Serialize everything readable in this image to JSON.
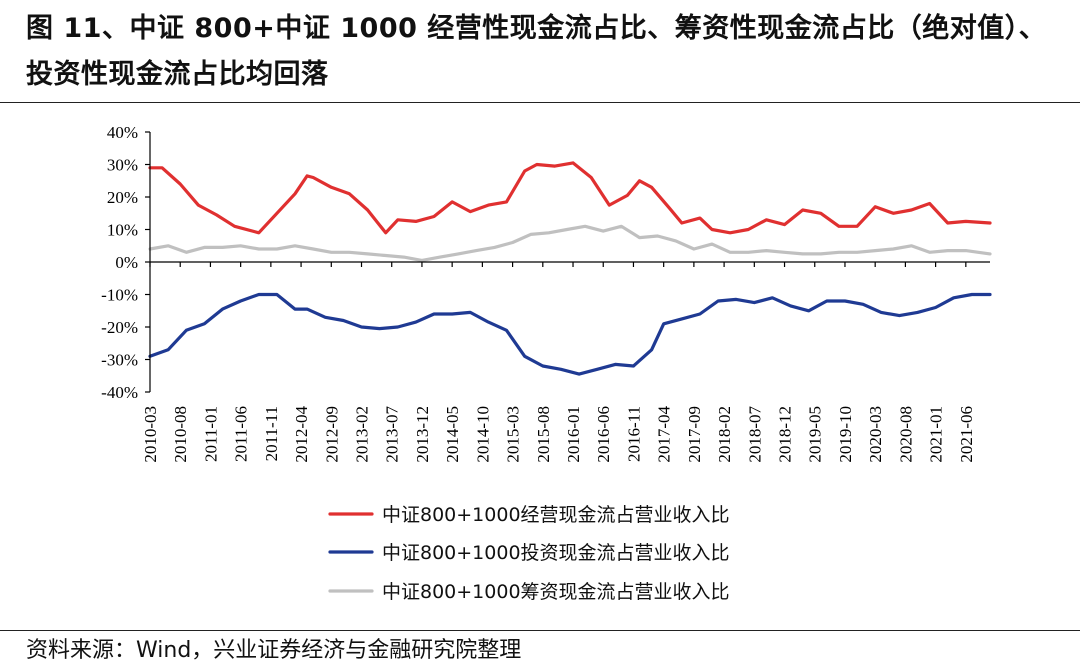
{
  "page": {
    "title": "图 11、中证 800+中证 1000 经营性现金流占比、筹资性现金流占比（绝对值）、投资性现金流占比均回落",
    "source": "资料来源：Wind，兴业证券经济与金融研究院整理"
  },
  "chart_data": {
    "type": "line",
    "title": "",
    "xlabel": "",
    "ylabel": "",
    "ylim": [
      -40,
      40
    ],
    "yticks": [
      "40%",
      "30%",
      "20%",
      "10%",
      "0%",
      "-10%",
      "-20%",
      "-30%",
      "-40%"
    ],
    "ytick_values": [
      40,
      30,
      20,
      10,
      0,
      -10,
      -20,
      -30,
      -40
    ],
    "xlim": [
      "2010-03",
      "2021-10"
    ],
    "xtick_labels": [
      "2010-03",
      "2010-08",
      "2011-01",
      "2011-06",
      "2011-11",
      "2012-04",
      "2012-09",
      "2013-02",
      "2013-07",
      "2013-12",
      "2014-05",
      "2014-10",
      "2015-03",
      "2015-08",
      "2016-01",
      "2016-06",
      "2016-11",
      "2017-04",
      "2017-09",
      "2018-02",
      "2018-07",
      "2018-12",
      "2019-05",
      "2019-10",
      "2020-03",
      "2020-08",
      "2021-01",
      "2021-06"
    ],
    "grid": false,
    "legend_position": "bottom",
    "series": [
      {
        "name": "中证800+1000经营现金流占营业收入比",
        "color": "#e03030",
        "points": [
          [
            "2010-03",
            29
          ],
          [
            "2010-05",
            29
          ],
          [
            "2010-08",
            24
          ],
          [
            "2010-11",
            17.5
          ],
          [
            "2011-02",
            14.5
          ],
          [
            "2011-05",
            11
          ],
          [
            "2011-09",
            9
          ],
          [
            "2011-12",
            15
          ],
          [
            "2012-03",
            21
          ],
          [
            "2012-05",
            26.5
          ],
          [
            "2012-06",
            26
          ],
          [
            "2012-09",
            23
          ],
          [
            "2012-12",
            21
          ],
          [
            "2013-03",
            16
          ],
          [
            "2013-06",
            9
          ],
          [
            "2013-08",
            13
          ],
          [
            "2013-11",
            12.5
          ],
          [
            "2014-02",
            14
          ],
          [
            "2014-05",
            18.5
          ],
          [
            "2014-08",
            15.5
          ],
          [
            "2014-11",
            17.5
          ],
          [
            "2015-02",
            18.5
          ],
          [
            "2015-05",
            28
          ],
          [
            "2015-07",
            30
          ],
          [
            "2015-10",
            29.5
          ],
          [
            "2016-01",
            30.5
          ],
          [
            "2016-04",
            26
          ],
          [
            "2016-07",
            17.5
          ],
          [
            "2016-10",
            20.5
          ],
          [
            "2016-12",
            25
          ],
          [
            "2017-02",
            23
          ],
          [
            "2017-05",
            16.5
          ],
          [
            "2017-07",
            12
          ],
          [
            "2017-10",
            13.5
          ],
          [
            "2017-12",
            10
          ],
          [
            "2018-03",
            9
          ],
          [
            "2018-06",
            10
          ],
          [
            "2018-09",
            13
          ],
          [
            "2018-12",
            11.5
          ],
          [
            "2019-03",
            16
          ],
          [
            "2019-06",
            15
          ],
          [
            "2019-09",
            11
          ],
          [
            "2019-12",
            11
          ],
          [
            "2020-03",
            17
          ],
          [
            "2020-06",
            15
          ],
          [
            "2020-09",
            16
          ],
          [
            "2020-12",
            18
          ],
          [
            "2021-03",
            12
          ],
          [
            "2021-06",
            12.5
          ],
          [
            "2021-10",
            12
          ]
        ]
      },
      {
        "name": "中证800+1000投资现金流占营业收入比",
        "color": "#1f3a93",
        "points": [
          [
            "2010-03",
            -29
          ],
          [
            "2010-06",
            -27
          ],
          [
            "2010-09",
            -21
          ],
          [
            "2010-12",
            -19
          ],
          [
            "2011-03",
            -14.5
          ],
          [
            "2011-06",
            -12
          ],
          [
            "2011-09",
            -10
          ],
          [
            "2011-12",
            -10
          ],
          [
            "2012-03",
            -14.5
          ],
          [
            "2012-05",
            -14.5
          ],
          [
            "2012-08",
            -17
          ],
          [
            "2012-11",
            -18
          ],
          [
            "2013-02",
            -20
          ],
          [
            "2013-05",
            -20.5
          ],
          [
            "2013-08",
            -20
          ],
          [
            "2013-11",
            -18.5
          ],
          [
            "2014-02",
            -16
          ],
          [
            "2014-05",
            -16
          ],
          [
            "2014-08",
            -15.5
          ],
          [
            "2014-11",
            -18.5
          ],
          [
            "2015-02",
            -21
          ],
          [
            "2015-05",
            -29
          ],
          [
            "2015-08",
            -32
          ],
          [
            "2015-11",
            -33
          ],
          [
            "2016-02",
            -34.5
          ],
          [
            "2016-05",
            -33
          ],
          [
            "2016-08",
            -31.5
          ],
          [
            "2016-11",
            -32
          ],
          [
            "2017-02",
            -27
          ],
          [
            "2017-04",
            -19
          ],
          [
            "2017-07",
            -17.5
          ],
          [
            "2017-10",
            -16
          ],
          [
            "2018-01",
            -12
          ],
          [
            "2018-04",
            -11.5
          ],
          [
            "2018-07",
            -12.5
          ],
          [
            "2018-10",
            -11
          ],
          [
            "2019-01",
            -13.5
          ],
          [
            "2019-04",
            -15
          ],
          [
            "2019-07",
            -12
          ],
          [
            "2019-10",
            -12
          ],
          [
            "2020-01",
            -13
          ],
          [
            "2020-04",
            -15.5
          ],
          [
            "2020-07",
            -16.5
          ],
          [
            "2020-10",
            -15.5
          ],
          [
            "2021-01",
            -14
          ],
          [
            "2021-04",
            -11
          ],
          [
            "2021-07",
            -10
          ],
          [
            "2021-10",
            -10
          ]
        ]
      },
      {
        "name": "中证800+1000筹资现金流占营业收入比",
        "color": "#c0c0c0",
        "points": [
          [
            "2010-03",
            4
          ],
          [
            "2010-06",
            5
          ],
          [
            "2010-09",
            3
          ],
          [
            "2010-12",
            4.5
          ],
          [
            "2011-03",
            4.5
          ],
          [
            "2011-06",
            5
          ],
          [
            "2011-09",
            4
          ],
          [
            "2011-12",
            4
          ],
          [
            "2012-03",
            5
          ],
          [
            "2012-06",
            4
          ],
          [
            "2012-09",
            3
          ],
          [
            "2012-12",
            3
          ],
          [
            "2013-03",
            2.5
          ],
          [
            "2013-06",
            2
          ],
          [
            "2013-09",
            1.5
          ],
          [
            "2013-12",
            0.5
          ],
          [
            "2014-03",
            1.5
          ],
          [
            "2014-06",
            2.5
          ],
          [
            "2014-09",
            3.5
          ],
          [
            "2014-12",
            4.5
          ],
          [
            "2015-03",
            6
          ],
          [
            "2015-06",
            8.5
          ],
          [
            "2015-09",
            9
          ],
          [
            "2015-12",
            10
          ],
          [
            "2016-03",
            11
          ],
          [
            "2016-06",
            9.5
          ],
          [
            "2016-09",
            11
          ],
          [
            "2016-12",
            7.5
          ],
          [
            "2017-03",
            8
          ],
          [
            "2017-06",
            6.5
          ],
          [
            "2017-09",
            4
          ],
          [
            "2017-12",
            5.5
          ],
          [
            "2018-03",
            3
          ],
          [
            "2018-06",
            3
          ],
          [
            "2018-09",
            3.5
          ],
          [
            "2018-12",
            3
          ],
          [
            "2019-03",
            2.5
          ],
          [
            "2019-06",
            2.5
          ],
          [
            "2019-09",
            3
          ],
          [
            "2019-12",
            3
          ],
          [
            "2020-03",
            3.5
          ],
          [
            "2020-06",
            4
          ],
          [
            "2020-09",
            5
          ],
          [
            "2020-12",
            3
          ],
          [
            "2021-03",
            3.5
          ],
          [
            "2021-06",
            3.5
          ],
          [
            "2021-10",
            2.5
          ]
        ]
      }
    ]
  }
}
